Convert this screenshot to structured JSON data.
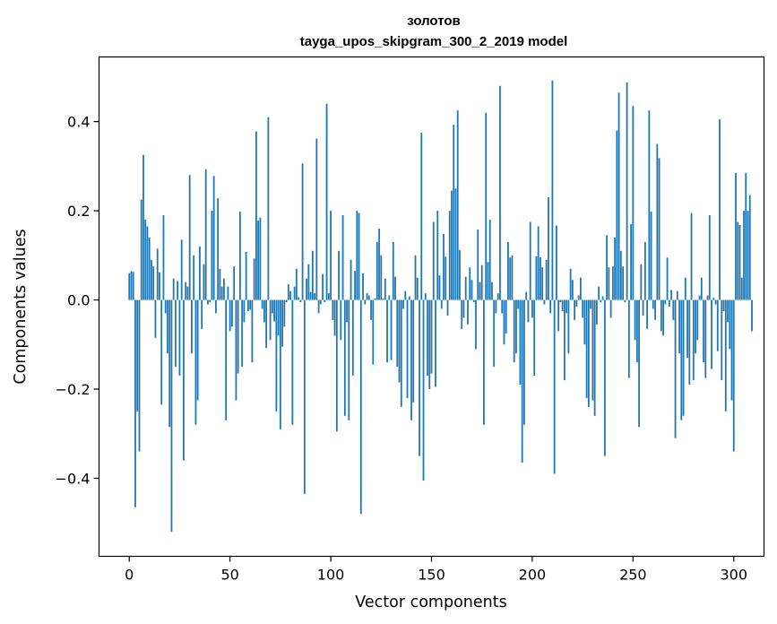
{
  "chart_data": {
    "type": "bar",
    "title": "золотов",
    "subtitle": "tayga_upos_skipgram_300_2_2019 model",
    "xlabel": "Vector components",
    "ylabel": "Components values",
    "xlim": [
      -15,
      315
    ],
    "ylim": [
      -0.575,
      0.545
    ],
    "xticks": [
      0,
      50,
      100,
      150,
      200,
      250,
      300
    ],
    "xtick_labels": [
      "0",
      "50",
      "100",
      "150",
      "200",
      "250",
      "300"
    ],
    "yticks": [
      -0.4,
      -0.2,
      0.0,
      0.2,
      0.4
    ],
    "ytick_labels": [
      "−0.4",
      "−0.2",
      "0.0",
      "0.2",
      "0.4"
    ],
    "grid": false,
    "bar_color": "#1f77b4",
    "values": [
      0.06,
      0.065,
      0.063,
      -0.465,
      -0.25,
      -0.34,
      0.225,
      0.325,
      0.18,
      0.165,
      0.14,
      0.09,
      0.075,
      -0.085,
      0.115,
      0.062,
      -0.235,
      0.19,
      -0.03,
      -0.12,
      -0.285,
      -0.52,
      0.048,
      -0.15,
      0.042,
      -0.17,
      0.135,
      -0.36,
      0.04,
      0.03,
      0.28,
      -0.12,
      0.1,
      -0.28,
      -0.225,
      0.12,
      -0.065,
      0.08,
      0.293,
      -0.01,
      -0.005,
      0.2,
      0.278,
      -0.03,
      0.228,
      0.07,
      0.03,
      0.048,
      -0.27,
      0.03,
      -0.07,
      -0.06,
      0.075,
      -0.225,
      -0.165,
      0.198,
      -0.15,
      -0.05,
      0.108,
      -0.025,
      -0.022,
      -0.14,
      0.093,
      0.378,
      0.178,
      0.185,
      -0.02,
      -0.05,
      -0.108,
      0.41,
      -0.09,
      -0.03,
      -0.048,
      -0.25,
      -0.08,
      -0.29,
      -0.105,
      -0.06,
      -0.005,
      0.035,
      0.02,
      -0.28,
      0.03,
      0.07,
      0.006,
      -0.005,
      0.306,
      -0.435,
      0.048,
      0.08,
      0.018,
      0.11,
      0.015,
      0.362,
      -0.03,
      -0.01,
      0.058,
      -0.005,
      0.44,
      0.015,
      0.2,
      -0.045,
      -0.08,
      -0.295,
      0.11,
      -0.09,
      0.19,
      -0.26,
      -0.05,
      -0.27,
      0.09,
      -0.17,
      0.065,
      0.2,
      0.195,
      -0.48,
      0.06,
      -0.01,
      0.015,
      0.01,
      -0.045,
      -0.145,
      0.003,
      0.13,
      0.16,
      0.1,
      0.003,
      0.048,
      -0.14,
      0.01,
      -0.135,
      0.13,
      0.052,
      -0.15,
      -0.185,
      -0.24,
      -0.02,
      0.02,
      -0.22,
      0.008,
      -0.27,
      -0.23,
      0.1,
      0.05,
      -0.35,
      0.375,
      -0.405,
      0.015,
      -0.17,
      -0.2,
      -0.165,
      0.175,
      -0.195,
      0.2,
      0.055,
      -0.02,
      0.148,
      0.097,
      -0.035,
      0.2,
      0.245,
      0.393,
      0.25,
      0.425,
      0.112,
      -0.065,
      -0.04,
      0.052,
      -0.055,
      0.073,
      0.045,
      -0.005,
      -0.11,
      0.158,
      0.04,
      0.078,
      -0.28,
      0.42,
      0.085,
      0.18,
      0.04,
      -0.15,
      -0.03,
      0.015,
      0.48,
      -0.03,
      -0.1,
      -0.075,
      0.13,
      0.095,
      0.1,
      -0.14,
      -0.12,
      -0.02,
      -0.19,
      -0.365,
      -0.28,
      0.018,
      -0.05,
      0.175,
      -0.04,
      -0.17,
      0.098,
      0.165,
      0.096,
      0.073,
      -0.01,
      0.09,
      0.23,
      -0.03,
      0.492,
      -0.39,
      0.167,
      -0.07,
      -0.005,
      -0.025,
      -0.18,
      -0.03,
      -0.12,
      0.07,
      0.045,
      -0.045,
      -0.015,
      0.01,
      0.05,
      -0.04,
      -0.1,
      -0.22,
      -0.24,
      -0.02,
      -0.225,
      -0.26,
      -0.055,
      0.03,
      -0.005,
      0.008,
      -0.35,
      0.145,
      0.073,
      -0.04,
      0.075,
      0.14,
      0.38,
      0.465,
      0.11,
      0.075,
      -0.005,
      0.488,
      -0.175,
      0.17,
      0.435,
      -0.09,
      -0.14,
      -0.285,
      0.08,
      -0.035,
      0.13,
      -0.065,
      0.425,
      0.198,
      -0.02,
      -0.045,
      0.35,
      0.318,
      -0.07,
      -0.08,
      -0.01,
      0.095,
      -0.015,
      0.022,
      -0.045,
      -0.31,
      0.02,
      -0.12,
      -0.27,
      -0.26,
      0.05,
      -0.13,
      -0.19,
      0.195,
      -0.18,
      -0.12,
      -0.09,
      0.01,
      0.05,
      -0.14,
      -0.175,
      0.01,
      0.19,
      -0.155,
      0.005,
      -0.01,
      -0.115,
      0.405,
      -0.18,
      -0.025,
      -0.25,
      -0.05,
      -0.11,
      -0.225,
      -0.34,
      0.285,
      0.175,
      0.168,
      0.05,
      0.2,
      0.285,
      0.2,
      0.235,
      -0.07
    ]
  }
}
